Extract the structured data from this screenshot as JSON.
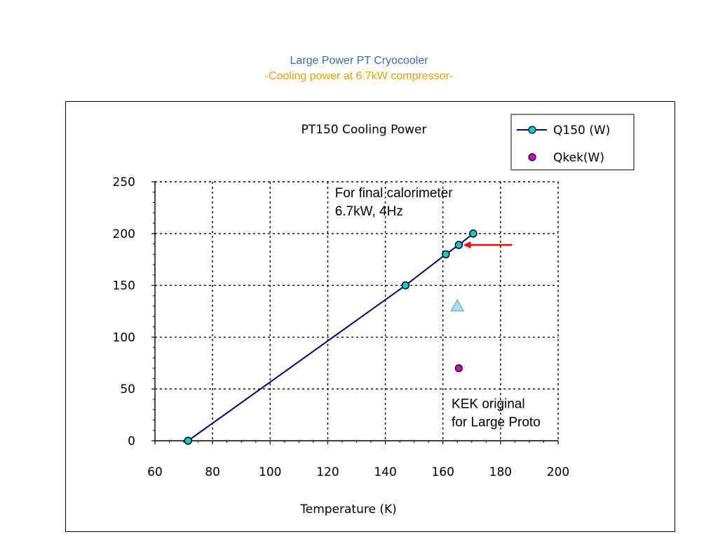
{
  "slide": {
    "title": "Large Power PT Cryocooler",
    "subtitle_dash_left": "-",
    "subtitle_text": "Cooling power at 6.7kW compressor",
    "subtitle_dash_right": "-"
  },
  "chart_data": {
    "type": "scatter",
    "title": "PT150 Cooling Power",
    "xlabel": "Temperature (K)",
    "ylabel": "",
    "xlim": [
      60,
      200
    ],
    "ylim": [
      0,
      250
    ],
    "x_ticks": [
      60,
      80,
      100,
      120,
      140,
      160,
      180,
      200
    ],
    "y_ticks": [
      0,
      50,
      100,
      150,
      200,
      250
    ],
    "grid": true,
    "legend_position": "top-right",
    "series": [
      {
        "name": "Q150 (W)",
        "style": "line-markers",
        "color": "#000080",
        "marker_color": "#00d0d0",
        "x": [
          71.5,
          147,
          161,
          165.5,
          170.5
        ],
        "y": [
          0,
          150,
          180,
          189,
          200
        ]
      },
      {
        "name": "Qkek(W)",
        "style": "markers",
        "marker_color": "#cc00cc",
        "x": [
          165.5
        ],
        "y": [
          70
        ]
      }
    ],
    "extra_marker": {
      "shape": "triangle",
      "color": "#a8dde8",
      "x": 165,
      "y": 130
    },
    "arrow": {
      "color": "#ff0000",
      "from": [
        184,
        189
      ],
      "to": [
        167,
        189
      ]
    },
    "annotations": [
      {
        "lines": [
          "For final calorimeter",
          "6.7kW, 4Hz"
        ],
        "x": 122.5,
        "y": 235
      },
      {
        "lines": [
          "KEK original",
          "for Large Proto"
        ],
        "x": 163,
        "y": 31.5
      }
    ]
  }
}
